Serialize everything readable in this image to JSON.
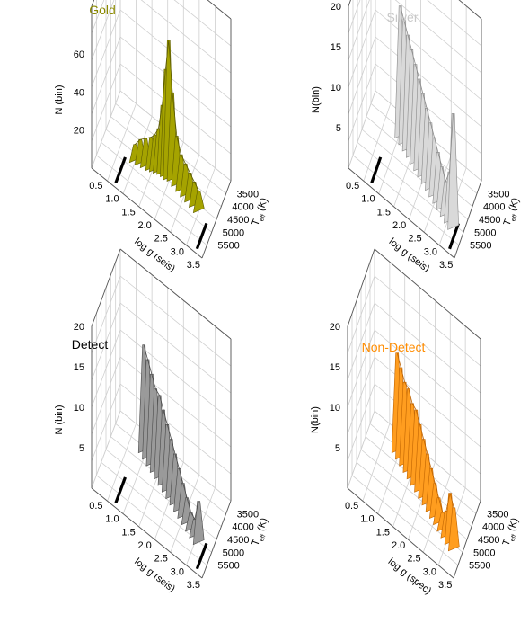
{
  "chart_data": [
    {
      "type": "surface3d",
      "title": "Gold",
      "title_color": "#8b8a00",
      "surface_color": "#a5a300",
      "surface_stroke": "#5f5e00",
      "xlabel": "log g (seis)",
      "ylabel_main": "T",
      "ylabel_sub": "eff",
      "ylabel_unit": " (K)",
      "zlabel": "N (bin)",
      "xticks": [
        "0.5",
        "1.0",
        "1.5",
        "2.0",
        "2.5",
        "3.0",
        "3.5"
      ],
      "yticks": [
        "3500",
        "4000",
        "4500",
        "5000",
        "5500"
      ],
      "zticks": [
        "20",
        "40",
        "60"
      ],
      "xlim": [
        0.3,
        3.7
      ],
      "ylim": [
        3000,
        6000
      ],
      "zlim": [
        0,
        85
      ],
      "markers_logg": [
        1.0,
        3.5
      ],
      "series": [
        {
          "x": [
            1.25,
            1.4,
            1.55,
            1.7,
            1.8,
            1.9,
            2.0,
            2.1,
            2.2,
            2.3,
            2.45,
            2.6,
            2.75,
            2.9,
            3.05,
            3.2
          ],
          "y": [
            4700,
            4650,
            4600,
            4550,
            4500,
            4450,
            4400,
            4380,
            4400,
            4350,
            4400,
            4450,
            4500,
            4550,
            4600,
            4650
          ],
          "z": [
            8,
            12,
            14,
            16,
            18,
            22,
            35,
            55,
            72,
            45,
            25,
            18,
            16,
            14,
            12,
            10
          ]
        }
      ]
    },
    {
      "type": "surface3d",
      "title": "Silver",
      "title_color": "#c8c8c8",
      "surface_color": "#d9d9d9",
      "surface_stroke": "#8a8a8a",
      "xlabel": "log g (seis)",
      "ylabel_main": "T",
      "ylabel_sub": "eff",
      "ylabel_unit": " (K)",
      "zlabel": "N(bin)",
      "xticks": [
        "0.5",
        "1.0",
        "1.5",
        "2.0",
        "2.5",
        "3.0",
        "3.5"
      ],
      "yticks": [
        "3500",
        "4000",
        "4500",
        "5000",
        "5500"
      ],
      "zticks": [
        "5",
        "10",
        "15",
        "20"
      ],
      "xlim": [
        0.3,
        3.7
      ],
      "ylim": [
        3000,
        6000
      ],
      "zlim": [
        0,
        20
      ],
      "markers_logg": [
        1.0,
        3.5
      ],
      "series": [
        {
          "x": [
            1.3,
            1.45,
            1.6,
            1.75,
            1.9,
            2.05,
            2.2,
            2.35,
            2.5,
            2.65,
            2.8,
            2.95,
            3.1,
            3.25,
            3.4
          ],
          "y": [
            3700,
            3800,
            3900,
            4000,
            4100,
            4200,
            4300,
            4400,
            4500,
            4600,
            4700,
            4800,
            4900,
            5000,
            5100
          ],
          "z": [
            16,
            15,
            14,
            13,
            12,
            11,
            10,
            9,
            8,
            7,
            6,
            5,
            4,
            6,
            14
          ]
        }
      ]
    },
    {
      "type": "surface3d",
      "title": "Detect",
      "title_color": "#000000",
      "surface_color": "#9a9a9a",
      "surface_stroke": "#4a4a4a",
      "xlabel": "log g (seis)",
      "ylabel_main": "T",
      "ylabel_sub": "eff",
      "ylabel_unit": " (K)",
      "zlabel": "N (bin)",
      "xticks": [
        "0.5",
        "1.0",
        "1.5",
        "2.0",
        "2.5",
        "3.0",
        "3.5"
      ],
      "yticks": [
        "3500",
        "4000",
        "4500",
        "5000",
        "5500"
      ],
      "zticks": [
        "5",
        "10",
        "15",
        "20"
      ],
      "xlim": [
        0.3,
        3.7
      ],
      "ylim": [
        3000,
        6000
      ],
      "zlim": [
        0,
        20
      ],
      "markers_logg": [
        1.0,
        3.5
      ],
      "series": [
        {
          "x": [
            1.2,
            1.35,
            1.5,
            1.65,
            1.8,
            1.95,
            2.1,
            2.25,
            2.4,
            2.55,
            2.7,
            2.85,
            3.0,
            3.15,
            3.3
          ],
          "y": [
            3600,
            3700,
            3800,
            3900,
            4000,
            4100,
            4200,
            4300,
            4400,
            4500,
            4600,
            4700,
            4800,
            4900,
            5000
          ],
          "z": [
            13,
            12,
            11,
            10,
            10,
            9,
            8,
            7,
            6,
            5,
            4,
            3,
            2,
            2,
            5
          ]
        }
      ]
    },
    {
      "type": "surface3d",
      "title": "Non-Detect",
      "title_color": "#ff8c00",
      "surface_color": "#ff9d1f",
      "surface_stroke": "#c06400",
      "xlabel": "log g (spec)",
      "ylabel_main": "T",
      "ylabel_sub": "eff",
      "ylabel_unit": " (K)",
      "zlabel": "N(bin)",
      "xticks": [
        "0.5",
        "1.0",
        "1.5",
        "2.0",
        "2.5",
        "3.0",
        "3.5"
      ],
      "yticks": [
        "3500",
        "4000",
        "4500",
        "5000",
        "5500"
      ],
      "zticks": [
        "5",
        "10",
        "15",
        "20"
      ],
      "xlim": [
        0.3,
        3.7
      ],
      "ylim": [
        3000,
        6000
      ],
      "zlim": [
        0,
        20
      ],
      "markers_logg": [],
      "series": [
        {
          "x": [
            1.2,
            1.35,
            1.5,
            1.65,
            1.8,
            1.95,
            2.1,
            2.25,
            2.4,
            2.55,
            2.7,
            2.85,
            3.0,
            3.15,
            3.3,
            3.45
          ],
          "y": [
            3600,
            3700,
            3800,
            3900,
            4000,
            4100,
            4200,
            4300,
            4400,
            4500,
            4600,
            4700,
            4800,
            4900,
            5000,
            5100
          ],
          "z": [
            12,
            11,
            10,
            10,
            9,
            9,
            8,
            7,
            6,
            5,
            4,
            3,
            2,
            3,
            6,
            5
          ]
        }
      ]
    }
  ]
}
